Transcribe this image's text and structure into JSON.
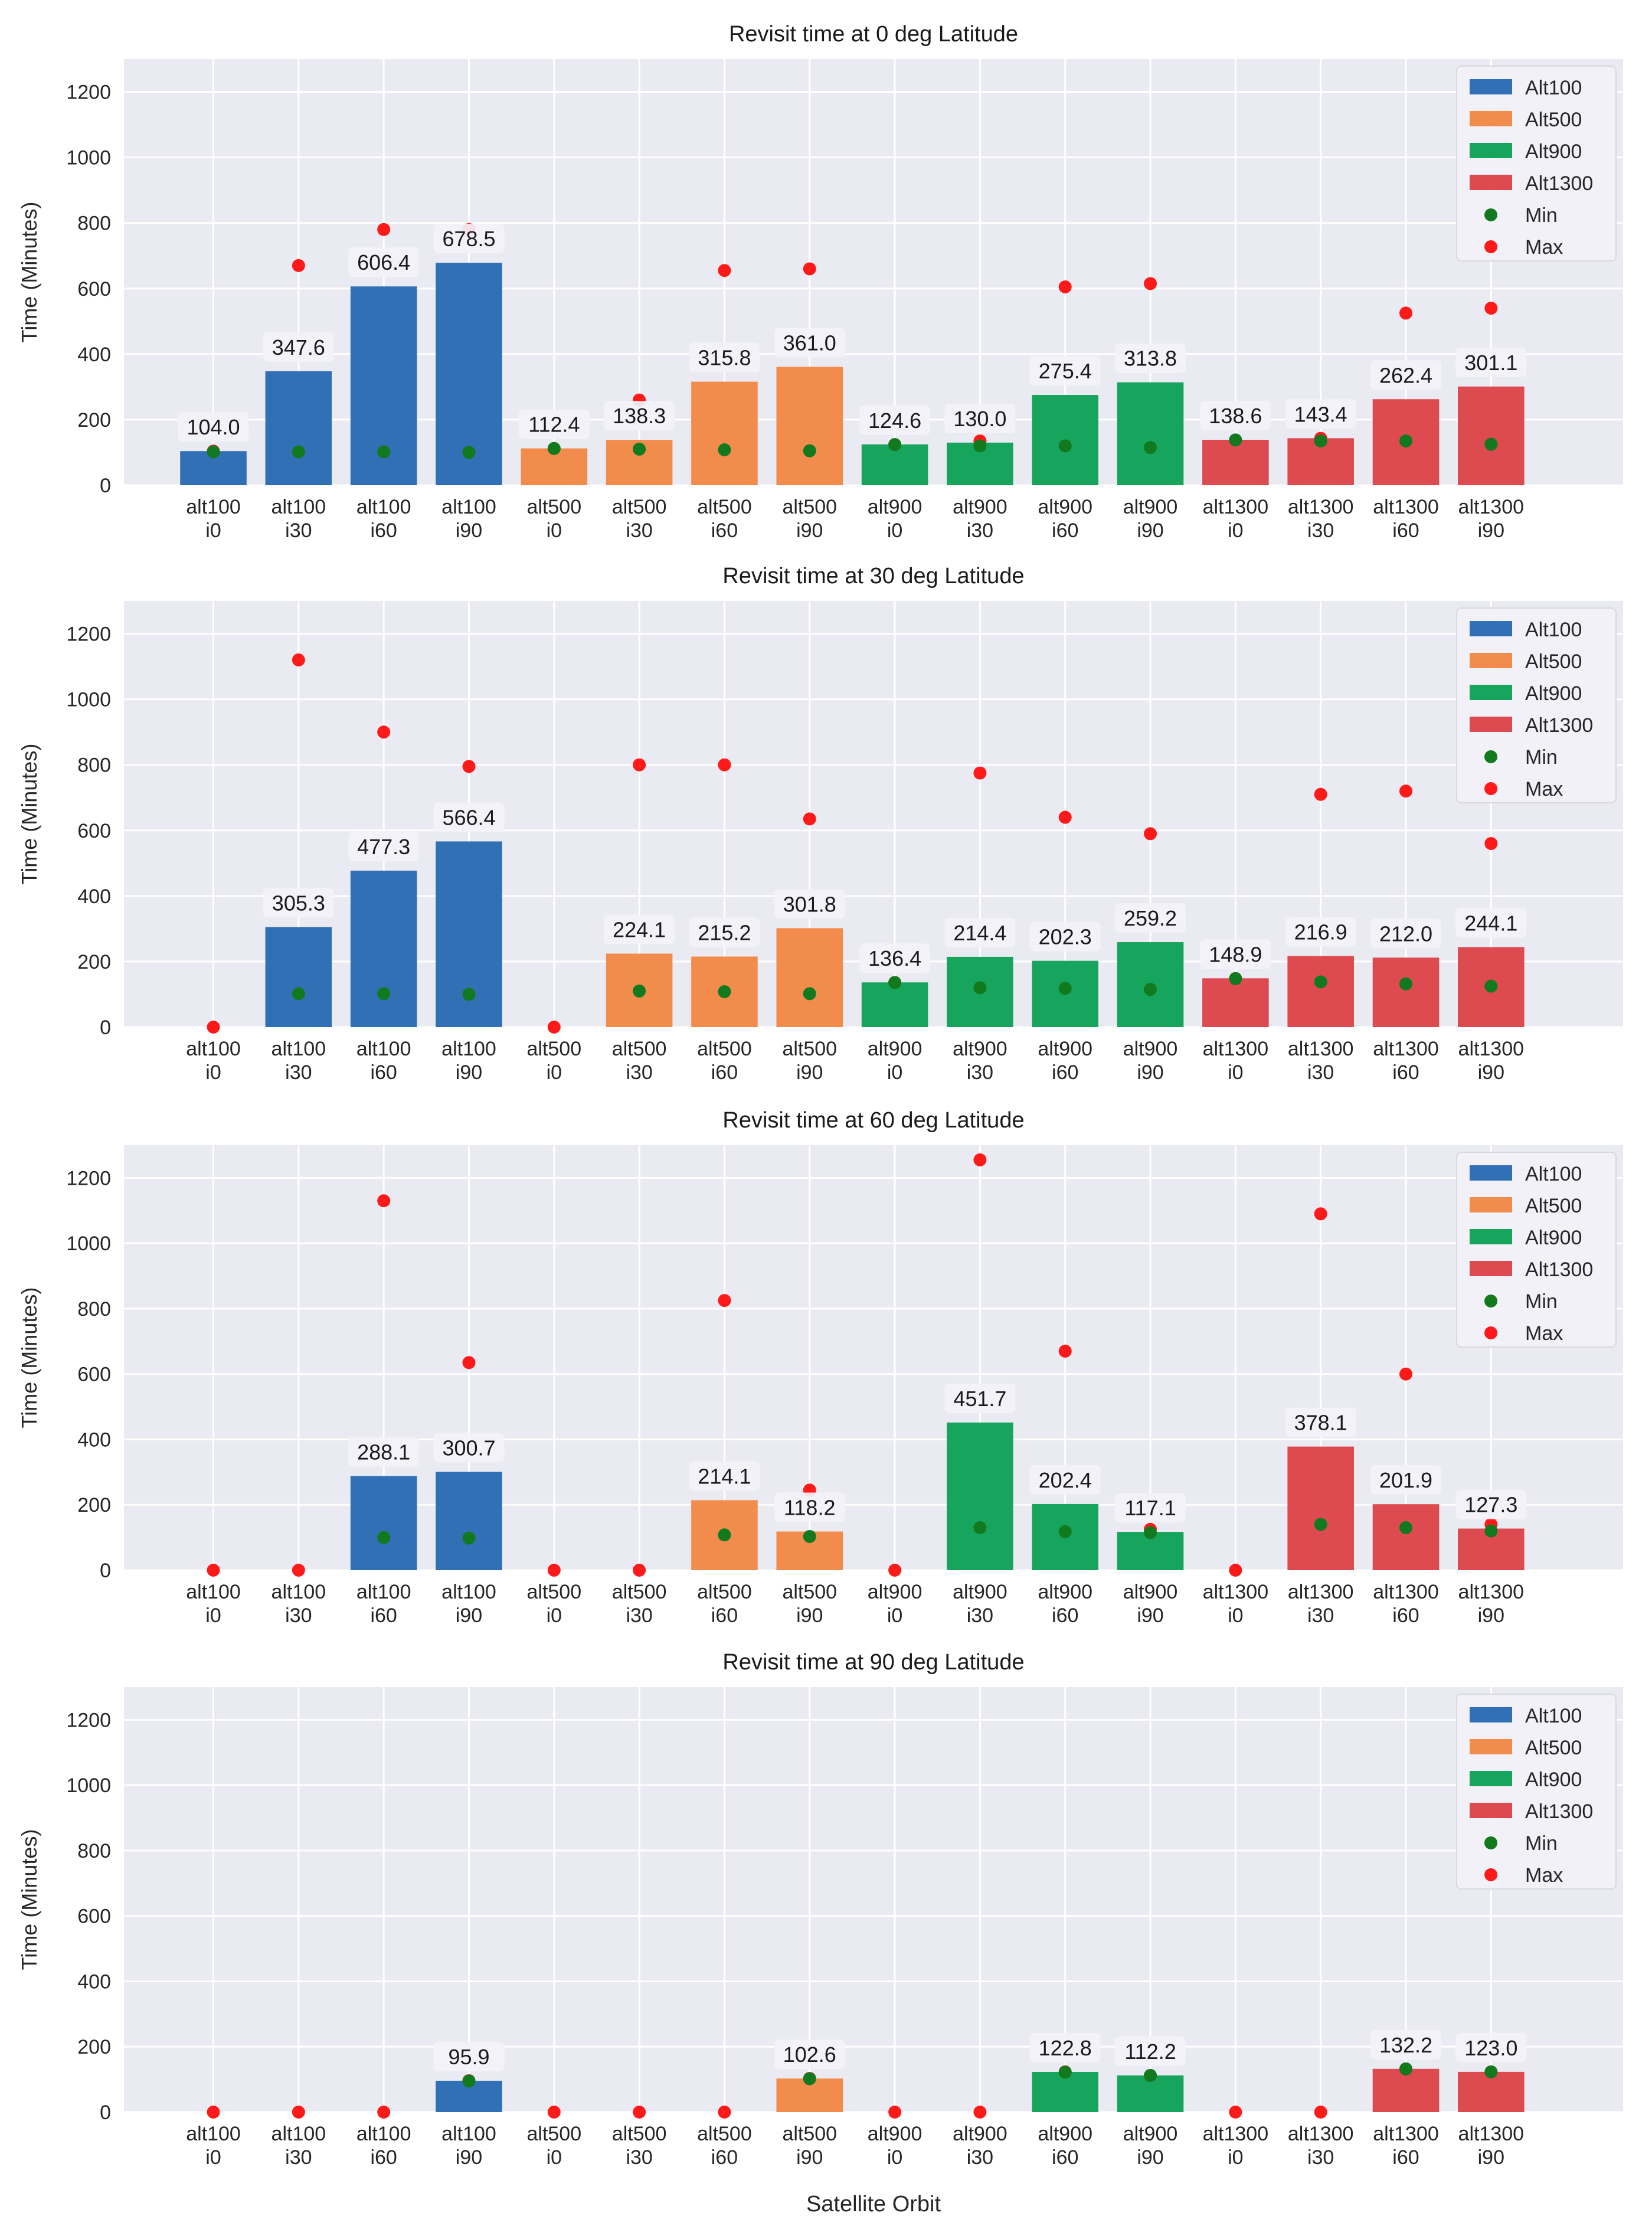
{
  "colors": {
    "background": "#EAEAF2",
    "grid": "#FFFFFF",
    "alt100": "#3170B5",
    "alt500": "#F28C4C",
    "alt900": "#17A45C",
    "alt1300": "#DD4A4F",
    "min": "#117A1E",
    "max": "#FF1A1A",
    "label_box": "#F2F2F8"
  },
  "chart_data": [
    {
      "type": "bar",
      "title": "Revisit time at 0 deg Latitude",
      "xlabel": "",
      "ylabel": "Time (Minutes)",
      "ylim": [
        0,
        1300
      ],
      "yticks": [
        0,
        200,
        400,
        600,
        800,
        1000,
        1200
      ],
      "grid": true,
      "legend_position": "top-right",
      "legend": [
        "Alt100",
        "Alt500",
        "Alt900",
        "Alt1300",
        "Min",
        "Max"
      ],
      "categories": [
        "alt100\ni0",
        "alt100\ni30",
        "alt100\ni60",
        "alt100\ni90",
        "alt500\ni0",
        "alt500\ni30",
        "alt500\ni60",
        "alt500\ni90",
        "alt900\ni0",
        "alt900\ni30",
        "alt900\ni60",
        "alt900\ni90",
        "alt1300\ni0",
        "alt1300\ni30",
        "alt1300\ni60",
        "alt1300\ni90"
      ],
      "groups": [
        0,
        0,
        0,
        0,
        1,
        1,
        1,
        1,
        2,
        2,
        2,
        2,
        3,
        3,
        3,
        3
      ],
      "values": [
        104.0,
        347.6,
        606.4,
        678.5,
        112.4,
        138.3,
        315.8,
        361.0,
        124.6,
        130.0,
        275.4,
        313.8,
        138.6,
        143.4,
        262.4,
        301.1
      ],
      "labels": [
        "104.0",
        "347.6",
        "606.4",
        "678.5",
        "112.4",
        "138.3",
        "315.8",
        "361.0",
        "124.6",
        "130.0",
        "275.4",
        "313.8",
        "138.6",
        "143.4",
        "262.4",
        "301.1"
      ],
      "min": [
        102,
        102,
        102,
        100,
        112,
        110,
        108,
        105,
        124,
        120,
        120,
        115,
        138,
        135,
        135,
        125
      ],
      "max": [
        104,
        670,
        780,
        780,
        112,
        260,
        655,
        660,
        124,
        135,
        605,
        615,
        138,
        143,
        525,
        540
      ]
    },
    {
      "type": "bar",
      "title": "Revisit time at 30 deg Latitude",
      "xlabel": "",
      "ylabel": "Time (Minutes)",
      "ylim": [
        0,
        1300
      ],
      "yticks": [
        0,
        200,
        400,
        600,
        800,
        1000,
        1200
      ],
      "grid": true,
      "legend_position": "top-right",
      "legend": [
        "Alt100",
        "Alt500",
        "Alt900",
        "Alt1300",
        "Min",
        "Max"
      ],
      "categories": [
        "alt100\ni0",
        "alt100\ni30",
        "alt100\ni60",
        "alt100\ni90",
        "alt500\ni0",
        "alt500\ni30",
        "alt500\ni60",
        "alt500\ni90",
        "alt900\ni0",
        "alt900\ni30",
        "alt900\ni60",
        "alt900\ni90",
        "alt1300\ni0",
        "alt1300\ni30",
        "alt1300\ni60",
        "alt1300\ni90"
      ],
      "groups": [
        0,
        0,
        0,
        0,
        1,
        1,
        1,
        1,
        2,
        2,
        2,
        2,
        3,
        3,
        3,
        3
      ],
      "values": [
        0,
        305.3,
        477.3,
        566.4,
        0,
        224.1,
        215.2,
        301.8,
        136.4,
        214.4,
        202.3,
        259.2,
        148.9,
        216.9,
        212.0,
        244.1
      ],
      "labels": [
        "",
        "305.3",
        "477.3",
        "566.4",
        "",
        "224.1",
        "215.2",
        "301.8",
        "136.4",
        "214.4",
        "202.3",
        "259.2",
        "148.9",
        "216.9",
        "212.0",
        "244.1"
      ],
      "min": [
        null,
        102,
        102,
        100,
        null,
        110,
        108,
        102,
        136,
        120,
        118,
        115,
        148,
        138,
        132,
        125
      ],
      "max": [
        0,
        1120,
        900,
        795,
        0,
        800,
        800,
        635,
        136,
        775,
        640,
        590,
        148,
        710,
        720,
        560
      ]
    },
    {
      "type": "bar",
      "title": "Revisit time at 60 deg Latitude",
      "xlabel": "",
      "ylabel": "Time (Minutes)",
      "ylim": [
        0,
        1300
      ],
      "yticks": [
        0,
        200,
        400,
        600,
        800,
        1000,
        1200
      ],
      "grid": true,
      "legend_position": "top-right",
      "legend": [
        "Alt100",
        "Alt500",
        "Alt900",
        "Alt1300",
        "Min",
        "Max"
      ],
      "categories": [
        "alt100\ni0",
        "alt100\ni30",
        "alt100\ni60",
        "alt100\ni90",
        "alt500\ni0",
        "alt500\ni30",
        "alt500\ni60",
        "alt500\ni90",
        "alt900\ni0",
        "alt900\ni30",
        "alt900\ni60",
        "alt900\ni90",
        "alt1300\ni0",
        "alt1300\ni30",
        "alt1300\ni60",
        "alt1300\ni90"
      ],
      "groups": [
        0,
        0,
        0,
        0,
        1,
        1,
        1,
        1,
        2,
        2,
        2,
        2,
        3,
        3,
        3,
        3
      ],
      "values": [
        0,
        0,
        288.1,
        300.7,
        0,
        0,
        214.1,
        118.2,
        0,
        451.7,
        202.4,
        117.1,
        0,
        378.1,
        201.9,
        127.3
      ],
      "labels": [
        "",
        "",
        "288.1",
        "300.7",
        "",
        "",
        "214.1",
        "118.2",
        "",
        "451.7",
        "202.4",
        "117.1",
        "",
        "378.1",
        "201.9",
        "127.3"
      ],
      "min": [
        null,
        null,
        100,
        98,
        null,
        null,
        108,
        103,
        null,
        130,
        118,
        115,
        null,
        140,
        130,
        120
      ],
      "max": [
        0,
        0,
        1130,
        635,
        0,
        0,
        825,
        245,
        0,
        1255,
        670,
        125,
        0,
        1090,
        600,
        140
      ]
    },
    {
      "type": "bar",
      "title": "Revisit time at 90 deg Latitude",
      "xlabel": "Satellite Orbit",
      "ylabel": "Time (Minutes)",
      "ylim": [
        0,
        1300
      ],
      "yticks": [
        0,
        200,
        400,
        600,
        800,
        1000,
        1200
      ],
      "grid": true,
      "legend_position": "top-right",
      "legend": [
        "Alt100",
        "Alt500",
        "Alt900",
        "Alt1300",
        "Min",
        "Max"
      ],
      "categories": [
        "alt100\ni0",
        "alt100\ni30",
        "alt100\ni60",
        "alt100\ni90",
        "alt500\ni0",
        "alt500\ni30",
        "alt500\ni60",
        "alt500\ni90",
        "alt900\ni0",
        "alt900\ni30",
        "alt900\ni60",
        "alt900\ni90",
        "alt1300\ni0",
        "alt1300\ni30",
        "alt1300\ni60",
        "alt1300\ni90"
      ],
      "groups": [
        0,
        0,
        0,
        0,
        1,
        1,
        1,
        1,
        2,
        2,
        2,
        2,
        3,
        3,
        3,
        3
      ],
      "values": [
        0,
        0,
        0,
        95.9,
        0,
        0,
        0,
        102.6,
        0,
        0,
        122.8,
        112.2,
        0,
        0,
        132.2,
        123.0
      ],
      "labels": [
        "",
        "",
        "",
        "95.9",
        "",
        "",
        "",
        "102.6",
        "",
        "",
        "122.8",
        "112.2",
        "",
        "",
        "132.2",
        "123.0"
      ],
      "min": [
        null,
        null,
        null,
        95,
        null,
        null,
        null,
        102,
        null,
        null,
        122,
        112,
        null,
        null,
        132,
        123
      ],
      "max": [
        0,
        0,
        0,
        96,
        0,
        0,
        0,
        103,
        0,
        0,
        123,
        112,
        0,
        0,
        132,
        123
      ]
    }
  ]
}
